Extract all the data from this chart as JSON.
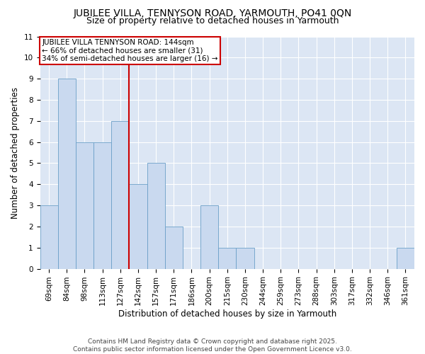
{
  "title1": "JUBILEE VILLA, TENNYSON ROAD, YARMOUTH, PO41 0QN",
  "title2": "Size of property relative to detached houses in Yarmouth",
  "xlabel": "Distribution of detached houses by size in Yarmouth",
  "ylabel": "Number of detached properties",
  "categories": [
    "69sqm",
    "84sqm",
    "98sqm",
    "113sqm",
    "127sqm",
    "142sqm",
    "157sqm",
    "171sqm",
    "186sqm",
    "200sqm",
    "215sqm",
    "230sqm",
    "244sqm",
    "259sqm",
    "273sqm",
    "288sqm",
    "303sqm",
    "317sqm",
    "332sqm",
    "346sqm",
    "361sqm"
  ],
  "values": [
    3,
    9,
    6,
    6,
    7,
    4,
    5,
    2,
    0,
    3,
    1,
    1,
    0,
    0,
    0,
    0,
    0,
    0,
    0,
    0,
    1
  ],
  "bar_color": "#c9d9ef",
  "bar_edge_color": "#6b9fc8",
  "vline_x_index": 4.5,
  "vline_color": "#cc0000",
  "annotation_text": "JUBILEE VILLA TENNYSON ROAD: 144sqm\n← 66% of detached houses are smaller (31)\n34% of semi-detached houses are larger (16) →",
  "annotation_box_color": "#ffffff",
  "annotation_box_edge": "#cc0000",
  "ylim": [
    0,
    11
  ],
  "yticks": [
    0,
    1,
    2,
    3,
    4,
    5,
    6,
    7,
    8,
    9,
    10,
    11
  ],
  "background_color": "#dce6f4",
  "grid_color": "#ffffff",
  "footer": "Contains HM Land Registry data © Crown copyright and database right 2025.\nContains public sector information licensed under the Open Government Licence v3.0.",
  "title_fontsize": 10,
  "subtitle_fontsize": 9,
  "axis_label_fontsize": 8.5,
  "tick_fontsize": 7.5,
  "annotation_fontsize": 7.5,
  "footer_fontsize": 6.5
}
